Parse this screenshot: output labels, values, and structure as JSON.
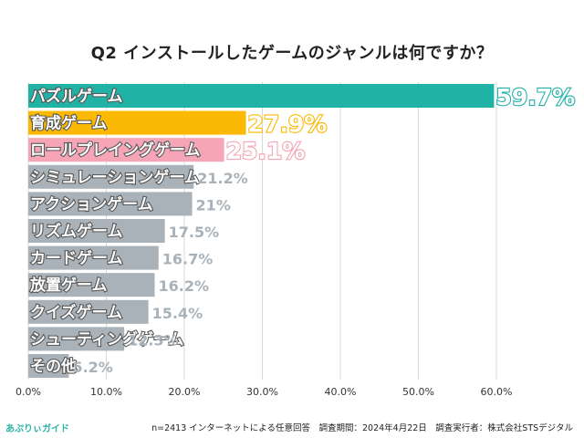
{
  "title": "Q2 インストールしたゲームのジャンルは何ですか？",
  "footer": {
    "brand": "あぷりぃガイド",
    "note": "n=2413 インターネットによる任意回答　調査期間：2024年4月22日　調査実行者：株式会社STSデジタル"
  },
  "chart_data": {
    "type": "bar",
    "orientation": "horizontal",
    "title": "Q2 インストールしたゲームのジャンルは何ですか？",
    "xlabel": "",
    "ylabel": "",
    "xlim": [
      0,
      60
    ],
    "xticks": [
      "0.0%",
      "10.0%",
      "20.0%",
      "30.0%",
      "40.0%",
      "50.0%",
      "60.0%"
    ],
    "grid": true,
    "categories": [
      "パズルゲーム",
      "育成ゲーム",
      "ロールプレイングゲーム",
      "シミュレーションゲーム",
      "アクションゲーム",
      "リズムゲーム",
      "カードゲーム",
      "放置ゲーム",
      "クイズゲーム",
      "シューティングゲーム",
      "その他"
    ],
    "values": [
      59.7,
      27.9,
      25.1,
      21.2,
      21,
      17.5,
      16.7,
      16.2,
      15.4,
      12.3,
      5.2
    ],
    "value_labels": [
      "59.7%",
      "27.9%",
      "25.1%",
      "21.2%",
      "21%",
      "17.5%",
      "16.7%",
      "16.2%",
      "15.4%",
      "12.3%",
      "5.2%"
    ],
    "colors": [
      "#20b2a5",
      "#fbb904",
      "#f5a5b5",
      "#a9b2b8",
      "#a9b2b8",
      "#a9b2b8",
      "#a9b2b8",
      "#a9b2b8",
      "#a9b2b8",
      "#a9b2b8",
      "#a9b2b8"
    ],
    "grid_color": "#d9d9d9"
  }
}
